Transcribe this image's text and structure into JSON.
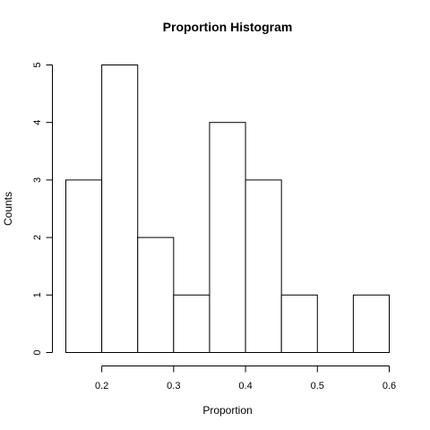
{
  "chart_data": {
    "type": "bar",
    "title": "Proportion Histogram",
    "xlabel": "Proportion",
    "ylabel": "Counts",
    "bins": [
      {
        "x0": 0.15,
        "x1": 0.2,
        "count": 3
      },
      {
        "x0": 0.2,
        "x1": 0.25,
        "count": 5
      },
      {
        "x0": 0.25,
        "x1": 0.3,
        "count": 2
      },
      {
        "x0": 0.3,
        "x1": 0.35,
        "count": 1
      },
      {
        "x0": 0.35,
        "x1": 0.4,
        "count": 4
      },
      {
        "x0": 0.4,
        "x1": 0.45,
        "count": 3
      },
      {
        "x0": 0.45,
        "x1": 0.5,
        "count": 1
      },
      {
        "x0": 0.5,
        "x1": 0.55,
        "count": 0
      },
      {
        "x0": 0.55,
        "x1": 0.6,
        "count": 1
      }
    ],
    "xticks": [
      {
        "value": 0.2,
        "label": "0.2"
      },
      {
        "value": 0.3,
        "label": "0.3"
      },
      {
        "value": 0.4,
        "label": "0.4"
      },
      {
        "value": 0.5,
        "label": "0.5"
      },
      {
        "value": 0.6,
        "label": "0.6"
      }
    ],
    "yticks": [
      {
        "value": 0,
        "label": "0"
      },
      {
        "value": 1,
        "label": "1"
      },
      {
        "value": 2,
        "label": "2"
      },
      {
        "value": 3,
        "label": "3"
      },
      {
        "value": 4,
        "label": "4"
      },
      {
        "value": 5,
        "label": "5"
      }
    ],
    "xlim": [
      0.15,
      0.6
    ],
    "ylim": [
      0,
      5
    ],
    "grid": false,
    "bar_fill": "#ffffff",
    "bar_stroke": "#000000"
  }
}
